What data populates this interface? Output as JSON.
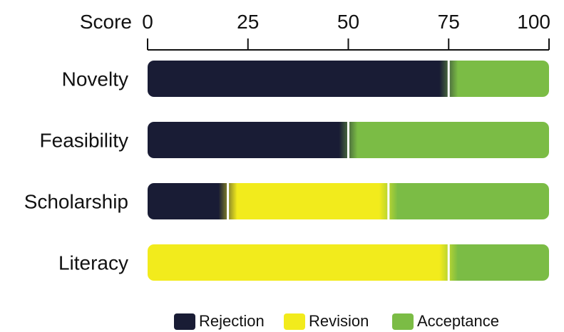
{
  "chart_data": {
    "type": "bar",
    "xlabel": "Score",
    "xlim": [
      0,
      100
    ],
    "xticks": [
      "0",
      "25",
      "50",
      "75",
      "100"
    ],
    "categories": [
      "Novelty",
      "Feasibility",
      "Scholarship",
      "Literacy"
    ],
    "series": [
      {
        "name": "Rejection",
        "color": "#191c35",
        "values": [
          75,
          50,
          20,
          0
        ]
      },
      {
        "name": "Revision",
        "color": "#f2eb1c",
        "values": [
          0,
          0,
          40,
          75
        ]
      },
      {
        "name": "Acceptance",
        "color": "#7bbc45",
        "values": [
          25,
          50,
          40,
          25
        ]
      }
    ],
    "legend_position": "bottom"
  }
}
